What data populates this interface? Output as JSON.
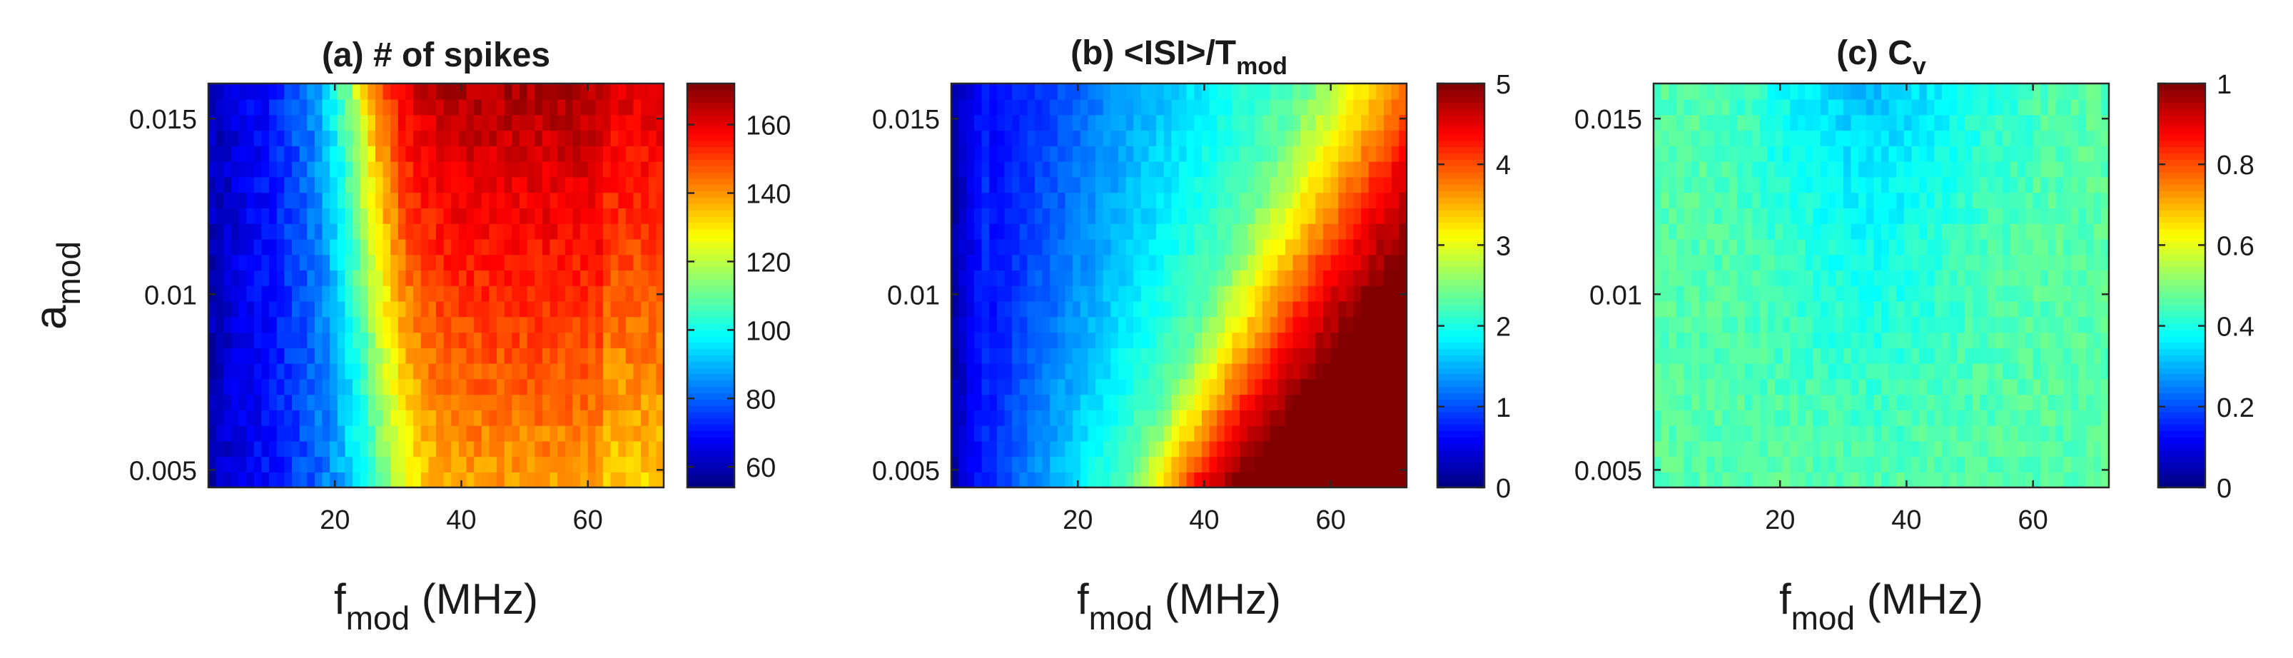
{
  "chart_data": [
    {
      "type": "heatmap",
      "title": "(a) # of spikes",
      "xlabel": {
        "main": "f",
        "sub": "mod",
        "tail": " (MHz)"
      },
      "ylabel": {
        "main": "a",
        "sub": "mod"
      },
      "xlim": [
        0,
        72
      ],
      "ylim": [
        0.0045,
        0.016
      ],
      "xticks": [
        20,
        40,
        60
      ],
      "xtick_labels": [
        "20",
        "40",
        "60"
      ],
      "yticks": [
        0.005,
        0.01,
        0.015
      ],
      "ytick_labels": [
        "0.005",
        "0.01",
        "0.015"
      ],
      "colorbar": {
        "range": [
          54,
          172
        ],
        "ticks": [
          60,
          80,
          100,
          120,
          140,
          160
        ],
        "tick_labels": [
          "60",
          "80",
          "100",
          "120",
          "140",
          "160"
        ]
      },
      "colormap": "jet",
      "grid": {
        "nx": 60,
        "ny": 26
      }
    },
    {
      "type": "heatmap",
      "title": {
        "main": "(b) <ISI>/T",
        "sub": "mod"
      },
      "xlabel": {
        "main": "f",
        "sub": "mod",
        "tail": " (MHz)"
      },
      "xlim": [
        0,
        72
      ],
      "ylim": [
        0.0045,
        0.016
      ],
      "xticks": [
        20,
        40,
        60
      ],
      "xtick_labels": [
        "20",
        "40",
        "60"
      ],
      "yticks": [
        0.005,
        0.01,
        0.015
      ],
      "ytick_labels": [
        "0.005",
        "0.01",
        "0.015"
      ],
      "colorbar": {
        "range": [
          0,
          5
        ],
        "ticks": [
          0,
          1,
          2,
          3,
          4,
          5
        ],
        "tick_labels": [
          "0",
          "1",
          "2",
          "3",
          "4",
          "5"
        ]
      },
      "colormap": "jet",
      "grid": {
        "nx": 60,
        "ny": 26
      }
    },
    {
      "type": "heatmap",
      "title": {
        "main": "(c) C",
        "sub": "v"
      },
      "xlabel": {
        "main": "f",
        "sub": "mod",
        "tail": " (MHz)"
      },
      "xlim": [
        0,
        72
      ],
      "ylim": [
        0.0045,
        0.016
      ],
      "xticks": [
        20,
        40,
        60
      ],
      "xtick_labels": [
        "20",
        "40",
        "60"
      ],
      "yticks": [
        0.005,
        0.01,
        0.015
      ],
      "ytick_labels": [
        "0.005",
        "0.01",
        "0.015"
      ],
      "colorbar": {
        "range": [
          0,
          1
        ],
        "ticks": [
          0,
          0.2,
          0.4,
          0.6,
          0.8,
          1
        ],
        "tick_labels": [
          "0",
          "0.2",
          "0.4",
          "0.6",
          "0.8",
          "1"
        ]
      },
      "colormap": "jet",
      "grid": {
        "nx": 60,
        "ny": 26
      }
    }
  ]
}
